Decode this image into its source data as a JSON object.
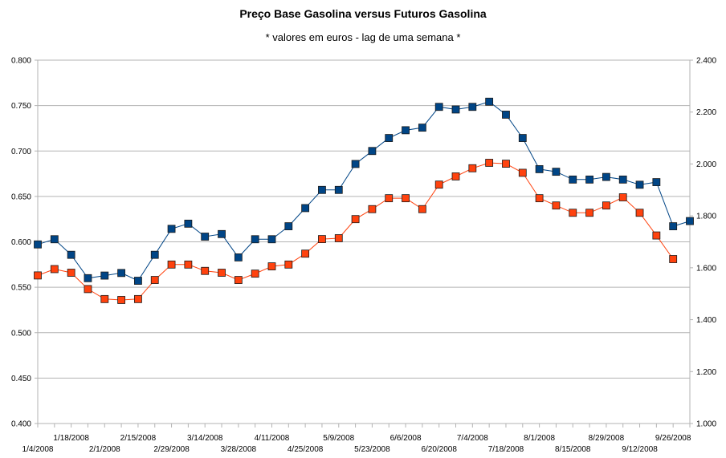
{
  "chart_data": {
    "type": "line",
    "title": "Preço Base Gasolina versus Futuros Gasolina",
    "subtitle": "* valores em euros - lag de uma semana *",
    "x_tick_labels": [
      "1/4/2008",
      "1/18/2008",
      "2/1/2008",
      "2/15/2008",
      "2/29/2008",
      "3/14/2008",
      "3/28/2008",
      "4/11/2008",
      "4/25/2008",
      "5/9/2008",
      "5/23/2008",
      "6/6/2008",
      "6/20/2008",
      "7/4/2008",
      "7/18/2008",
      "8/1/2008",
      "8/15/2008",
      "8/29/2008",
      "9/12/2008",
      "9/26/2008"
    ],
    "y_left": {
      "min": 0.4,
      "max": 0.8,
      "step": 0.05,
      "tick_labels": [
        "0.400",
        "0.450",
        "0.500",
        "0.550",
        "0.600",
        "0.650",
        "0.700",
        "0.750",
        "0.800"
      ]
    },
    "y_right": {
      "min": 1.0,
      "max": 2.4,
      "step": 0.2,
      "tick_labels": [
        "1.000",
        "1.200",
        "1.400",
        "1.600",
        "1.800",
        "2.000",
        "2.200",
        "2.400"
      ]
    },
    "grid": true,
    "series": [
      {
        "axis": "left",
        "color": "#ff420e",
        "values": [
          0.563,
          0.57,
          0.566,
          0.548,
          0.537,
          0.536,
          0.537,
          0.558,
          0.575,
          0.575,
          0.568,
          0.566,
          0.558,
          0.565,
          0.573,
          0.575,
          0.587,
          0.603,
          0.604,
          0.625,
          0.636,
          0.648,
          0.648,
          0.636,
          0.663,
          0.672,
          0.681,
          0.687,
          0.686,
          0.676,
          0.648,
          0.64,
          0.632,
          0.632,
          0.64,
          0.649,
          0.632,
          0.607,
          0.581
        ]
      },
      {
        "axis": "right",
        "color": "#004586",
        "values": [
          1.69,
          1.71,
          1.65,
          1.56,
          1.57,
          1.58,
          1.55,
          1.65,
          1.75,
          1.77,
          1.72,
          1.73,
          1.64,
          1.71,
          1.71,
          1.76,
          1.83,
          1.9,
          1.9,
          2.0,
          2.05,
          2.1,
          2.13,
          2.14,
          2.22,
          2.21,
          2.22,
          2.24,
          2.19,
          2.1,
          1.98,
          1.97,
          1.94,
          1.94,
          1.95,
          1.94,
          1.92,
          1.93,
          1.76,
          1.78
        ]
      }
    ]
  }
}
